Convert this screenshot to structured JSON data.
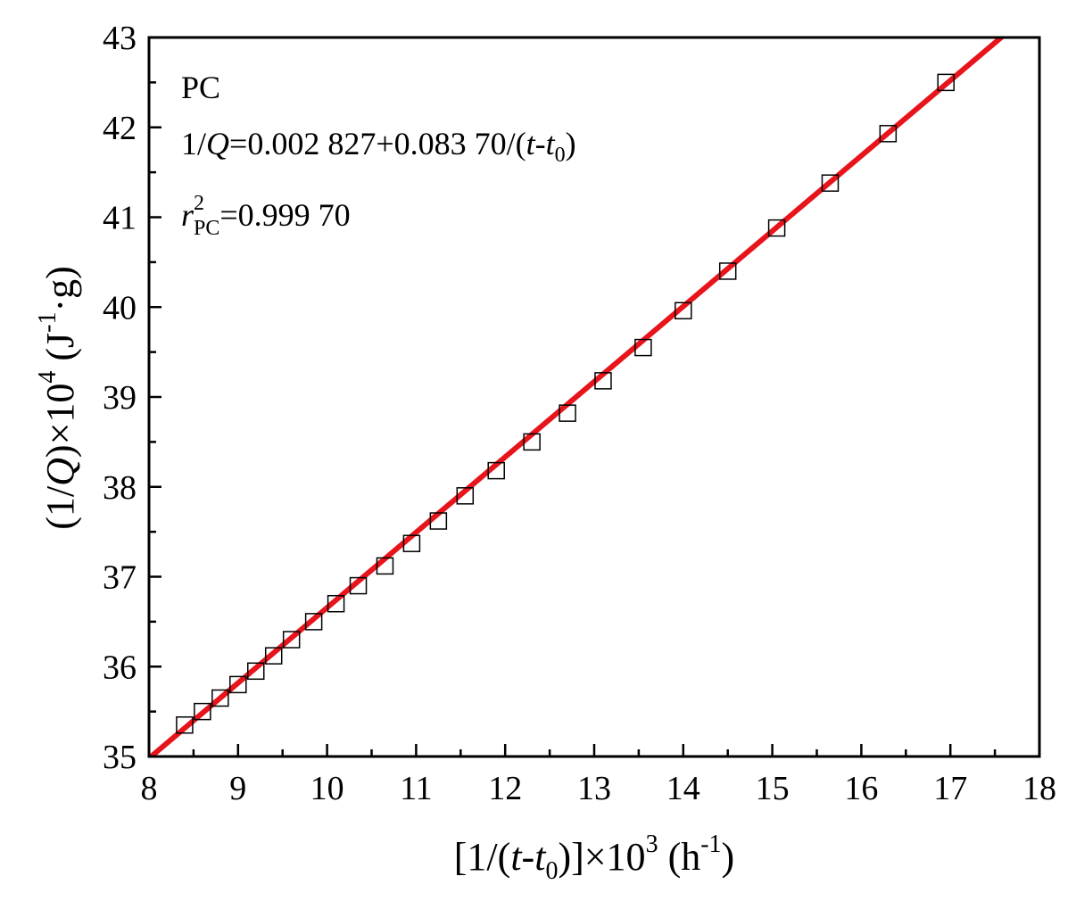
{
  "chart_data": {
    "type": "scatter",
    "x": [
      8.4,
      8.6,
      8.8,
      9.0,
      9.2,
      9.4,
      9.6,
      9.85,
      10.1,
      10.35,
      10.65,
      10.95,
      11.25,
      11.55,
      11.9,
      12.3,
      12.7,
      13.1,
      13.55,
      14.0,
      14.5,
      15.05,
      15.65,
      16.3,
      16.95
    ],
    "y": [
      35.35,
      35.5,
      35.65,
      35.8,
      35.95,
      36.12,
      36.3,
      36.5,
      36.7,
      36.9,
      37.12,
      37.37,
      37.62,
      37.9,
      38.18,
      38.5,
      38.82,
      39.18,
      39.55,
      39.96,
      40.4,
      40.88,
      41.38,
      41.93,
      42.5
    ],
    "fit_line": {
      "x": [
        8.0,
        18.0
      ],
      "y": [
        34.98,
        43.36
      ]
    },
    "xlim": [
      8,
      18
    ],
    "ylim": [
      35,
      43
    ],
    "xticks": [
      "8",
      "9",
      "10",
      "11",
      "12",
      "13",
      "14",
      "15",
      "16",
      "17",
      "18"
    ],
    "yticks": [
      "35",
      "36",
      "37",
      "38",
      "39",
      "40",
      "41",
      "42",
      "43"
    ],
    "colors": {
      "fit_line": "#e8141c",
      "markers": "#000000",
      "axes": "#000000"
    },
    "annotations": {
      "sample": "PC",
      "equation": {
        "lhs_num": "1/",
        "lhs_var": "Q",
        "rhs_a": "=0.002 827+0.083 70/(",
        "t": "t",
        "dash": "-",
        "t0": "t",
        "sub0": "0",
        "close": ")"
      },
      "r2": {
        "r": "r",
        "sup": "2",
        "sub": "PC",
        "value": "=0.999 70"
      }
    },
    "xlabel": {
      "open": "[1/(",
      "t": "t",
      "dash": "-",
      "t0": "t",
      "sub0": "0",
      "mid": ")]×10",
      "sup3": "3",
      "unit_open": " (h",
      "unit_sup": "-1",
      "unit_close": ")"
    },
    "ylabel": {
      "open": "(1/",
      "q": "Q",
      "mid": ")×10",
      "sup4": "4",
      "unit_open": " (J",
      "unit_sup": "-1",
      "unit_close": "·g)"
    }
  }
}
